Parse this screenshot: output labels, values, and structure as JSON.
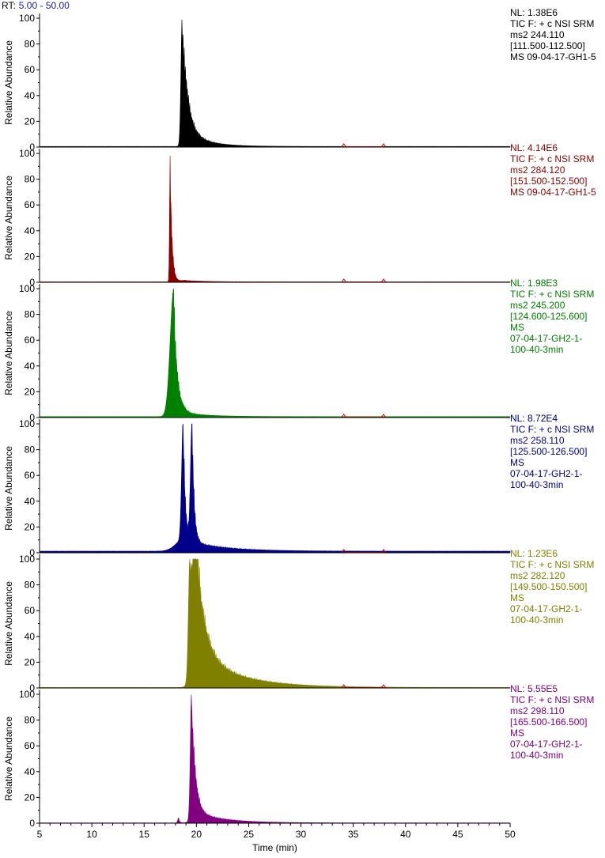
{
  "header": {
    "rt_prefix": "RT:",
    "rt_range": "5.00 - 50.00"
  },
  "chart_data": {
    "type": "line",
    "xlabel": "Time (min)",
    "ylabel": "Relative Abundance",
    "xlim": [
      5,
      50
    ],
    "ylim": [
      0,
      100
    ],
    "x_ticks": [
      "5",
      "10",
      "15",
      "20",
      "25",
      "30",
      "35",
      "40",
      "45",
      "50"
    ],
    "y_ticks": [
      "0",
      "20",
      "40",
      "60",
      "80",
      "100"
    ],
    "panels": [
      {
        "color": "#000000",
        "info": [
          "NL: 1.38E6",
          "TIC F: + c NSI SRM",
          "ms2 244.110",
          "[111.500-112.500]",
          "MS 09-04-17-GH1-5"
        ],
        "base": 0.4,
        "peaks": [
          {
            "rt": 18.65,
            "height": 100,
            "rise": 0.12,
            "decay": 0.5
          },
          {
            "rt": 19.1,
            "height": 12,
            "rise": 0.3,
            "decay": 2.0
          }
        ],
        "markers": [
          34.1,
          37.9
        ]
      },
      {
        "color": "#8b0000",
        "info": [
          "NL: 4.14E6",
          "TIC F: + c NSI SRM",
          "ms2 284.120",
          "[151.500-152.500]",
          "MS 09-04-17-GH1-5"
        ],
        "base": 0.3,
        "peaks": [
          {
            "rt": 17.5,
            "height": 100,
            "rise": 0.06,
            "decay": 0.18
          },
          {
            "rt": 19.0,
            "height": 1.2,
            "rise": 0.5,
            "decay": 2.0
          }
        ],
        "markers": [
          34.1,
          37.9
        ]
      },
      {
        "color": "#008000",
        "info": [
          "NL: 1.98E3",
          "TIC F: + c NSI SRM",
          "ms2 245.200",
          "[124.600-125.600]",
          "MS",
          "07-04-17-GH2-1-",
          "100-40-3min"
        ],
        "base": 0.6,
        "peaks": [
          {
            "rt": 17.85,
            "height": 100,
            "rise": 0.35,
            "decay": 0.35
          },
          {
            "rt": 19.0,
            "height": 3,
            "rise": 0.5,
            "decay": 2.5
          }
        ],
        "markers": [
          34.1,
          37.9
        ]
      },
      {
        "color": "#00008b",
        "info": [
          "NL: 8.72E4",
          "TIC F: + c NSI SRM",
          "ms2 258.110",
          "[125.500-126.500]",
          "MS",
          "07-04-17-GH2-1-",
          "100-40-3min"
        ],
        "base": 1.0,
        "peaks": [
          {
            "rt": 18.75,
            "height": 96,
            "rise": 0.15,
            "decay": 0.2
          },
          {
            "rt": 19.6,
            "height": 98,
            "rise": 0.15,
            "decay": 0.2
          },
          {
            "rt": 18.9,
            "height": 10,
            "rise": 0.8,
            "decay": 3.5
          }
        ],
        "markers": [
          34.1,
          37.9
        ]
      },
      {
        "color": "#808000",
        "info": [
          "NL: 1.23E6",
          "TIC F: + c NSI SRM",
          "ms2 282.120",
          "[149.500-150.500]",
          "MS",
          "07-04-17-GH2-1-",
          "100-40-3min"
        ],
        "base": 0.3,
        "peaks": [
          {
            "rt": 19.4,
            "height": 100,
            "rise": 0.15,
            "decay": 0.5
          },
          {
            "rt": 19.9,
            "height": 78,
            "rise": 0.2,
            "decay": 0.9
          },
          {
            "rt": 20.2,
            "height": 28,
            "rise": 0.5,
            "decay": 4.0
          }
        ],
        "markers": [
          34.1,
          37.9
        ]
      },
      {
        "color": "#800080",
        "info": [
          "NL: 5.55E5",
          "TIC F: + c NSI SRM",
          "ms2 298.110",
          "[165.500-166.500]",
          "MS",
          "07-04-17-GH2-1-",
          "100-40-3min"
        ],
        "base": 0.2,
        "peaks": [
          {
            "rt": 19.55,
            "height": 100,
            "rise": 0.12,
            "decay": 0.35
          },
          {
            "rt": 20.0,
            "height": 9,
            "rise": 0.4,
            "decay": 2.8
          },
          {
            "rt": 18.3,
            "height": 4,
            "rise": 0.08,
            "decay": 0.1
          }
        ],
        "markers": []
      }
    ]
  }
}
